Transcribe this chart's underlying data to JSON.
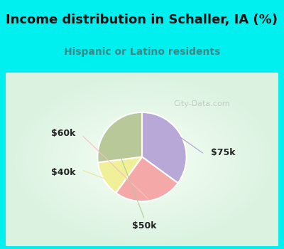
{
  "title": "Income distribution in Schaller, IA (%)",
  "subtitle": "Hispanic or Latino residents",
  "slices": [
    {
      "label": "$75k",
      "value": 35,
      "color": "#b8a8d8"
    },
    {
      "label": "$60k",
      "value": 25,
      "color": "#f4a8a8"
    },
    {
      "label": "$40k",
      "value": 13,
      "color": "#f0f098"
    },
    {
      "label": "$50k",
      "value": 27,
      "color": "#b8c898"
    }
  ],
  "bg_cyan": "#00f0f0",
  "title_color": "#111111",
  "subtitle_color": "#3a8888",
  "watermark": "City-Data.com",
  "label_fontsize": 9,
  "title_fontsize": 13,
  "subtitle_fontsize": 10,
  "label_color": "#222222",
  "line_colors": [
    "#b0a0d0",
    "#f8c0c0",
    "#e8e890",
    "#b8c898"
  ]
}
